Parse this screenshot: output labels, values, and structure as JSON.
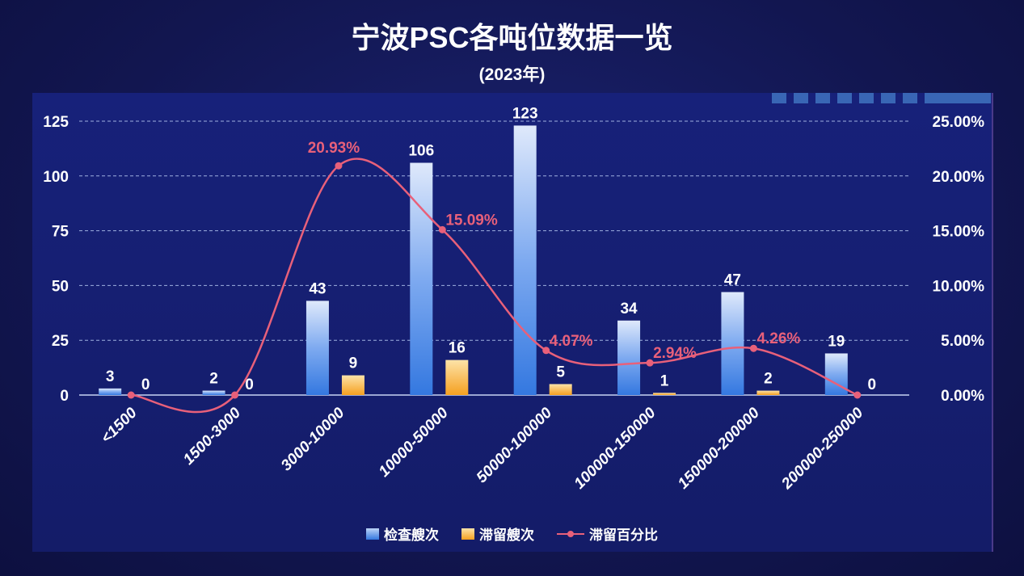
{
  "chart_data": {
    "type": "bar",
    "title": "宁波PSC各吨位数据一览",
    "subtitle": "(2023年)",
    "categories": [
      "<1500",
      "1500-3000",
      "3000-10000",
      "10000-50000",
      "50000-100000",
      "100000-150000",
      "150000-200000",
      "200000-250000"
    ],
    "series": [
      {
        "name": "检查艘次",
        "type": "bar",
        "axis": "left",
        "color": "#3d7fe0",
        "values": [
          3,
          2,
          43,
          106,
          123,
          34,
          47,
          19
        ]
      },
      {
        "name": "滞留艘次",
        "type": "bar",
        "axis": "left",
        "color": "#f5a623",
        "values": [
          0,
          0,
          9,
          16,
          5,
          1,
          2,
          0
        ]
      },
      {
        "name": "滞留百分比",
        "type": "line",
        "axis": "right",
        "color": "#e8607a",
        "values": [
          0,
          0,
          20.93,
          15.09,
          4.07,
          2.94,
          4.26,
          0
        ],
        "labels": [
          "",
          "",
          "20.93%",
          "15.09%",
          "4.07%",
          "2.94%",
          "4.26%",
          ""
        ]
      }
    ],
    "ylim_left": [
      0,
      125
    ],
    "yticks_left": [
      "0",
      "25",
      "50",
      "75",
      "100",
      "125"
    ],
    "ylim_right": [
      0,
      25
    ],
    "yticks_right": [
      "0.00%",
      "5.00%",
      "10.00%",
      "15.00%",
      "20.00%",
      "25.00%"
    ],
    "grid": true,
    "legend": "bottom"
  }
}
